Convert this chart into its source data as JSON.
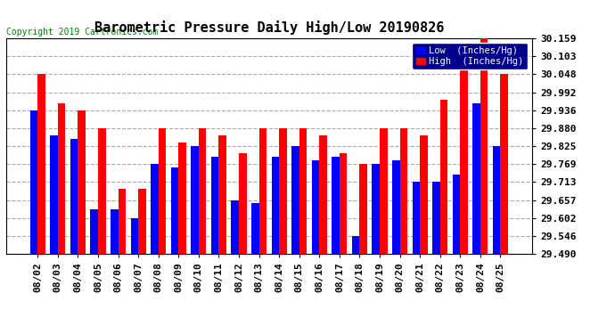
{
  "title": "Barometric Pressure Daily High/Low 20190826",
  "copyright": "Copyright 2019 Cartronics.com",
  "legend_low": "Low  (Inches/Hg)",
  "legend_high": "High  (Inches/Hg)",
  "dates": [
    "08/02",
    "08/03",
    "08/04",
    "08/05",
    "08/06",
    "08/07",
    "08/08",
    "08/09",
    "08/10",
    "08/11",
    "08/12",
    "08/13",
    "08/14",
    "08/15",
    "08/16",
    "08/17",
    "08/18",
    "08/19",
    "08/20",
    "08/21",
    "08/22",
    "08/23",
    "08/24",
    "08/25"
  ],
  "low_values": [
    29.936,
    29.858,
    29.847,
    29.627,
    29.627,
    29.6,
    29.769,
    29.759,
    29.825,
    29.791,
    29.657,
    29.647,
    29.791,
    29.825,
    29.78,
    29.791,
    29.546,
    29.769,
    29.78,
    29.713,
    29.713,
    29.735,
    29.958,
    29.825
  ],
  "high_values": [
    30.048,
    29.958,
    29.936,
    29.88,
    29.691,
    29.691,
    29.88,
    29.836,
    29.88,
    29.858,
    29.803,
    29.88,
    29.88,
    29.88,
    29.858,
    29.803,
    29.769,
    29.88,
    29.88,
    29.858,
    29.969,
    30.126,
    30.159,
    30.048
  ],
  "low_color": "#0000ff",
  "high_color": "#ff0000",
  "bg_color": "#ffffff",
  "plot_bg_color": "#ffffff",
  "grid_color": "#aaaaaa",
  "title_fontsize": 11,
  "tick_fontsize": 8,
  "ylim_min": 29.49,
  "ylim_max": 30.159,
  "yticks": [
    29.49,
    29.546,
    29.602,
    29.657,
    29.713,
    29.769,
    29.825,
    29.88,
    29.936,
    29.992,
    30.048,
    30.103,
    30.159
  ]
}
